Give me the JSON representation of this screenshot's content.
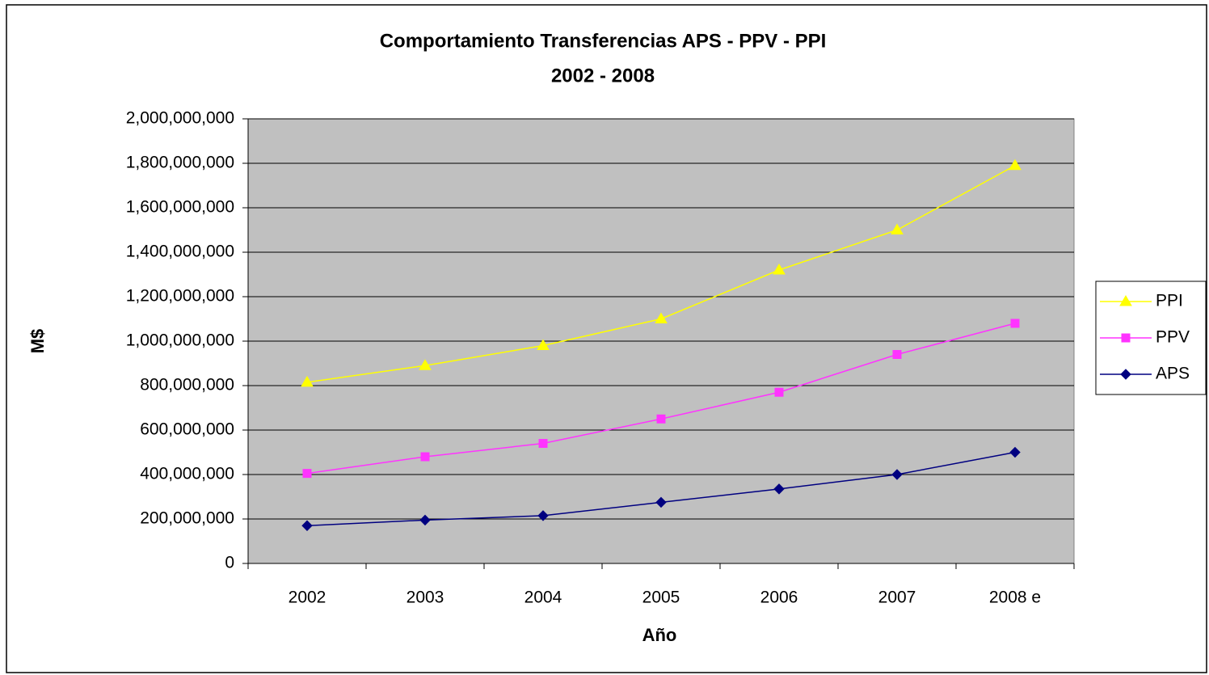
{
  "chart_data": {
    "type": "line",
    "title": "Comportamiento Transferencias APS - PPV - PPI",
    "subtitle": "2002 - 2008",
    "x_label": "Año",
    "y_label": "M$",
    "categories": [
      "2002",
      "2003",
      "2004",
      "2005",
      "2006",
      "2007",
      "2008 e"
    ],
    "series": [
      {
        "name": "PPI",
        "color": "#ffff00",
        "marker": "triangle",
        "values": [
          815000000,
          890000000,
          980000000,
          1100000000,
          1320000000,
          1500000000,
          1790000000
        ]
      },
      {
        "name": "PPV",
        "color": "#ff33ff",
        "marker": "square",
        "values": [
          405000000,
          480000000,
          540000000,
          650000000,
          770000000,
          940000000,
          1080000000
        ]
      },
      {
        "name": "APS",
        "color": "#000080",
        "marker": "diamond",
        "values": [
          170000000,
          195000000,
          215000000,
          275000000,
          335000000,
          400000000,
          500000000
        ]
      }
    ],
    "ylim": [
      0,
      2000000000
    ],
    "yticks": [
      0,
      {
        "value": 200000000,
        "label": "200,000,000"
      },
      {
        "value": 400000000,
        "label": "400,000,000"
      },
      {
        "value": 600000000,
        "label": "600,000,000"
      },
      {
        "value": 800000000,
        "label": "800,000,000"
      },
      {
        "value": 1000000000,
        "label": "1,000,000,000"
      },
      {
        "value": 1200000000,
        "label": "1,200,000,000"
      },
      {
        "value": 1400000000,
        "label": "1,400,000,000"
      },
      {
        "value": 1600000000,
        "label": "1,600,000,000"
      },
      {
        "value": 1800000000,
        "label": "1,800,000,000"
      },
      {
        "value": 2000000000,
        "label": "2,000,000,000"
      }
    ],
    "grid": true,
    "legend": "right"
  }
}
